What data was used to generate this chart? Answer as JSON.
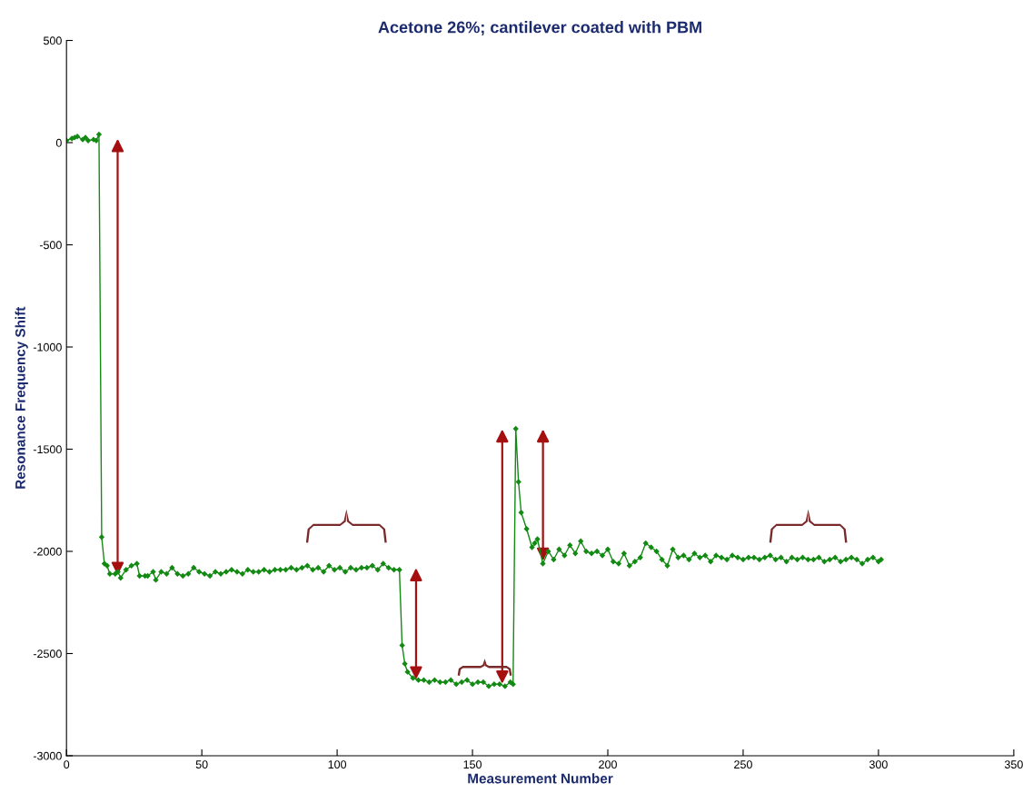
{
  "chart_data": {
    "type": "line",
    "title": "Acetone 26%; cantilever coated with PBM",
    "xlabel": "Measurement Number",
    "ylabel": "Resonance Frequency Shift",
    "xlim": [
      0,
      350
    ],
    "xticks": [
      0,
      50,
      100,
      150,
      200,
      250,
      300,
      350
    ],
    "ylim": [
      -3000,
      500
    ],
    "yticks": [
      -3000,
      -2500,
      -2000,
      -1500,
      -1000,
      -500,
      0,
      500
    ],
    "grid": false,
    "marker": "diamond",
    "line_style": "solid",
    "series": [
      {
        "color": "#138a13",
        "x": [
          0,
          2,
          3,
          4,
          6,
          7,
          8,
          10,
          11,
          12,
          13,
          14,
          15,
          16,
          18,
          19,
          20,
          22,
          24,
          26,
          27,
          29,
          30,
          32,
          33,
          35,
          37,
          39,
          41,
          43,
          45,
          47,
          49,
          51,
          53,
          55,
          57,
          59,
          61,
          63,
          65,
          67,
          69,
          71,
          73,
          75,
          77,
          79,
          81,
          83,
          85,
          87,
          89,
          91,
          93,
          95,
          97,
          99,
          101,
          103,
          105,
          107,
          109,
          111,
          113,
          115,
          117,
          119,
          121,
          123,
          124,
          125,
          126,
          128,
          130,
          132,
          134,
          136,
          138,
          140,
          142,
          144,
          146,
          148,
          150,
          152,
          154,
          156,
          158,
          160,
          162,
          164,
          165,
          166,
          167,
          168,
          170,
          172,
          173,
          174,
          176,
          178,
          180,
          182,
          184,
          186,
          188,
          190,
          192,
          194,
          196,
          198,
          200,
          202,
          204,
          206,
          208,
          210,
          212,
          214,
          216,
          218,
          220,
          222,
          224,
          226,
          228,
          230,
          232,
          234,
          236,
          238,
          240,
          242,
          244,
          246,
          248,
          250,
          252,
          254,
          256,
          258,
          260,
          262,
          264,
          266,
          268,
          270,
          272,
          274,
          276,
          278,
          280,
          282,
          284,
          286,
          288,
          290,
          292,
          294,
          296,
          298,
          300,
          301
        ],
        "values": [
          10,
          20,
          25,
          30,
          15,
          25,
          10,
          15,
          10,
          40,
          -1930,
          -2060,
          -2070,
          -2110,
          -2110,
          -2100,
          -2130,
          -2090,
          -2070,
          -2060,
          -2120,
          -2120,
          -2120,
          -2100,
          -2140,
          -2100,
          -2110,
          -2080,
          -2110,
          -2120,
          -2110,
          -2080,
          -2100,
          -2110,
          -2120,
          -2100,
          -2110,
          -2100,
          -2090,
          -2100,
          -2110,
          -2090,
          -2100,
          -2100,
          -2090,
          -2100,
          -2090,
          -2090,
          -2090,
          -2080,
          -2090,
          -2080,
          -2070,
          -2090,
          -2080,
          -2100,
          -2070,
          -2090,
          -2080,
          -2100,
          -2080,
          -2090,
          -2080,
          -2080,
          -2070,
          -2090,
          -2060,
          -2080,
          -2090,
          -2090,
          -2460,
          -2550,
          -2590,
          -2620,
          -2630,
          -2630,
          -2640,
          -2630,
          -2640,
          -2640,
          -2630,
          -2650,
          -2640,
          -2630,
          -2650,
          -2640,
          -2640,
          -2660,
          -2650,
          -2650,
          -2660,
          -2640,
          -2650,
          -1400,
          -1660,
          -1810,
          -1890,
          -1980,
          -1960,
          -1940,
          -2060,
          -2000,
          -2040,
          -1990,
          -2020,
          -1970,
          -2010,
          -1950,
          -2000,
          -2010,
          -2000,
          -2020,
          -1990,
          -2050,
          -2060,
          -2010,
          -2070,
          -2050,
          -2030,
          -1960,
          -1980,
          -2000,
          -2040,
          -2070,
          -1990,
          -2030,
          -2020,
          -2040,
          -2010,
          -2030,
          -2020,
          -2050,
          -2020,
          -2030,
          -2040,
          -2020,
          -2030,
          -2040,
          -2030,
          -2030,
          -2040,
          -2030,
          -2020,
          -2040,
          -2030,
          -2050,
          -2030,
          -2040,
          -2030,
          -2040,
          -2040,
          -2030,
          -2050,
          -2040,
          -2030,
          -2050,
          -2040,
          -2030,
          -2040,
          -2060,
          -2040,
          -2030,
          -2050,
          -2040
        ]
      }
    ]
  }
}
